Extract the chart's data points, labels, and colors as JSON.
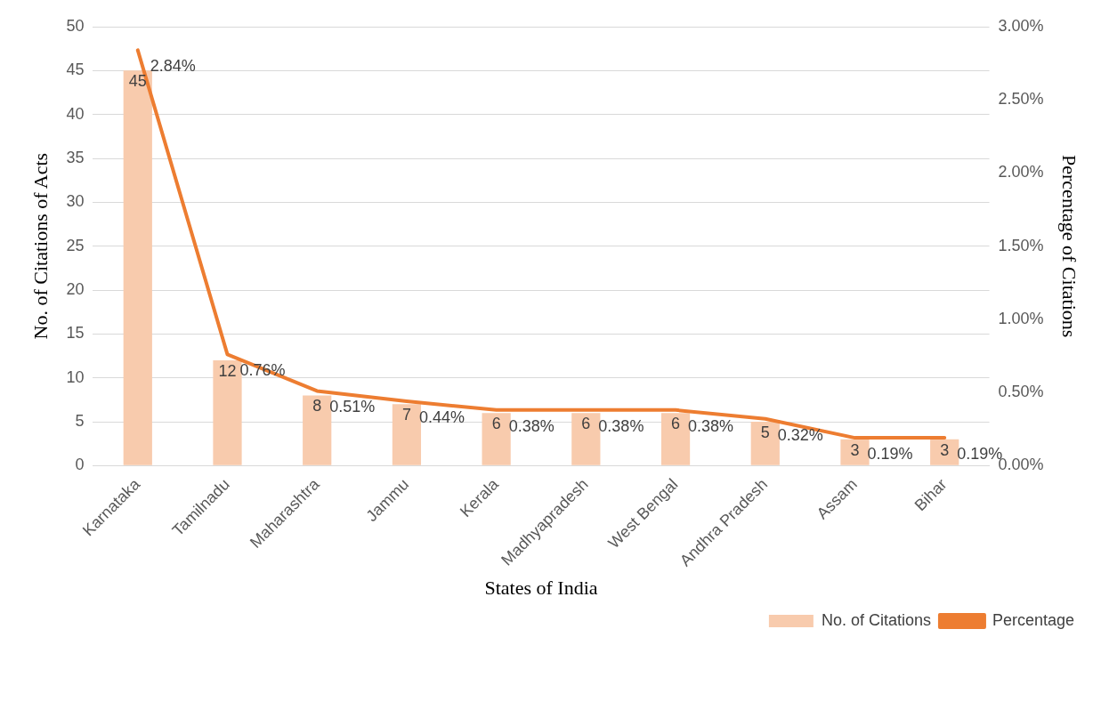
{
  "chart_data": {
    "type": "bar",
    "xlabel": "States of India",
    "ylabel": "No. of Citations of Acts",
    "y2label": "Percentage of Citations",
    "categories": [
      "Karnataka",
      "Tamilnadu",
      "Maharashtra",
      "Jammu",
      "Kerala",
      "Madhyapradesh",
      "West Bengal",
      "Andhra Pradesh",
      "Assam",
      "Bihar"
    ],
    "series": [
      {
        "name": "No. of Citations",
        "color": "#f8cbad",
        "values": [
          45,
          12,
          8,
          7,
          6,
          6,
          6,
          5,
          3,
          3
        ],
        "value_labels": [
          "45",
          "12",
          "8",
          "7",
          "6",
          "6",
          "6",
          "5",
          "3",
          "3"
        ]
      },
      {
        "name": "Percentage",
        "type": "line",
        "axis": "y2",
        "color": "#ed7d31",
        "values": [
          2.84,
          0.76,
          0.51,
          0.44,
          0.38,
          0.38,
          0.38,
          0.32,
          0.19,
          0.19
        ],
        "value_labels": [
          "2.84%",
          "0.76%",
          "0.51%",
          "0.44%",
          "0.38%",
          "0.38%",
          "0.38%",
          "0.32%",
          "0.19%",
          "0.19%"
        ]
      }
    ],
    "ylim": [
      0,
      50
    ],
    "yticks": [
      0,
      5,
      10,
      15,
      20,
      25,
      30,
      35,
      40,
      45,
      50
    ],
    "y2lim": [
      0,
      3
    ],
    "y2ticks": [
      {
        "value": 0,
        "label": "0.00%"
      },
      {
        "value": 0.5,
        "label": "0.50%"
      },
      {
        "value": 1,
        "label": "1.00%"
      },
      {
        "value": 1.5,
        "label": "1.50%"
      },
      {
        "value": 2,
        "label": "2.00%"
      },
      {
        "value": 2.5,
        "label": "2.50%"
      },
      {
        "value": 3,
        "label": "3.00%"
      }
    ],
    "grid": "y",
    "legend": "bottom right"
  }
}
